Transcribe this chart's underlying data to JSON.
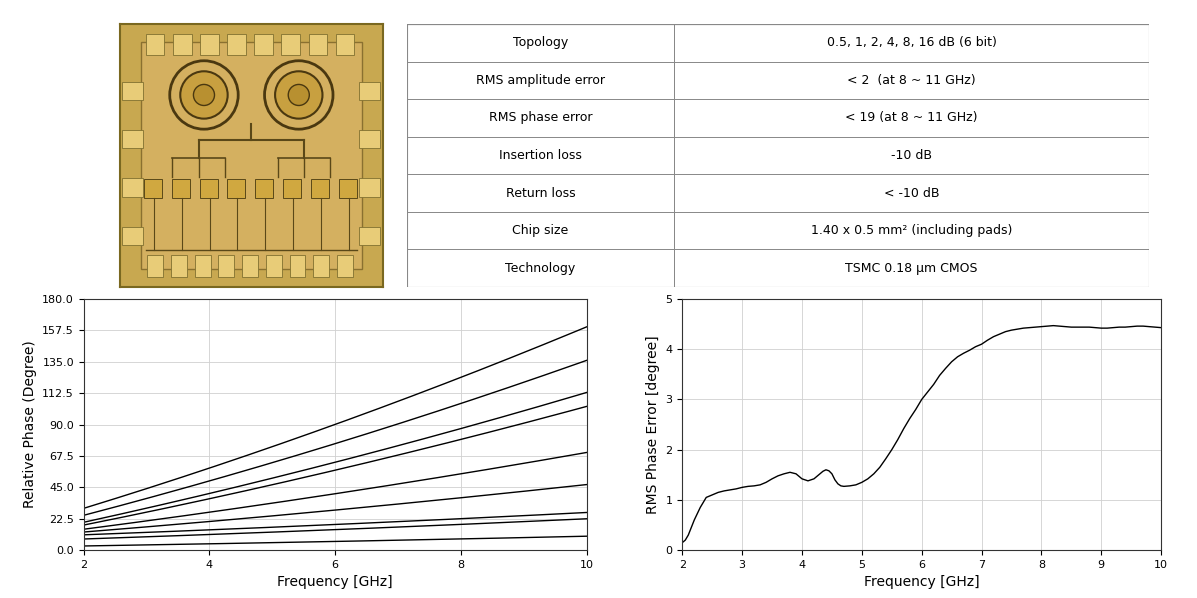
{
  "table_rows": [
    [
      "Topology",
      "0.5, 1, 2, 4, 8, 16 dB (6 bit)"
    ],
    [
      "RMS amplitude error",
      "< 2  (at 8 ~ 11 GHz)"
    ],
    [
      "RMS phase error",
      "< 19 (at 8 ~ 11 GHz)"
    ],
    [
      "Insertion loss",
      "-10 dB"
    ],
    [
      "Return loss",
      "< -10 dB"
    ],
    [
      "Chip size",
      "1.40 x 0.5 mm² (including pads)"
    ],
    [
      "Technology",
      "TSMC 0.18 μm CMOS"
    ]
  ],
  "left_plot": {
    "xlabel": "Frequency [GHz]",
    "ylabel": "Relative Phase (Degree)",
    "xlim": [
      2,
      10
    ],
    "ylim": [
      0.0,
      180.0
    ],
    "yticks": [
      0.0,
      22.5,
      45.0,
      67.5,
      90.0,
      112.5,
      135.0,
      157.5,
      180.0
    ],
    "xticks": [
      2,
      4,
      6,
      8,
      10
    ],
    "phase_lines": [
      [
        30.0,
        160.0
      ],
      [
        25.0,
        136.0
      ],
      [
        20.0,
        113.0
      ],
      [
        18.0,
        103.0
      ],
      [
        15.0,
        70.0
      ],
      [
        13.0,
        47.0
      ],
      [
        11.0,
        27.0
      ],
      [
        8.0,
        22.5
      ],
      [
        3.0,
        10.0
      ]
    ]
  },
  "right_plot": {
    "xlabel": "Frequency [GHz]",
    "ylabel": "RMS Phase Error [degree]",
    "xlim": [
      2,
      10
    ],
    "ylim": [
      0,
      5
    ],
    "yticks": [
      0,
      1,
      2,
      3,
      4,
      5
    ],
    "xticks": [
      2,
      3,
      4,
      5,
      6,
      7,
      8,
      9,
      10
    ],
    "rms_curve_x": [
      2.0,
      2.05,
      2.1,
      2.15,
      2.2,
      2.3,
      2.4,
      2.5,
      2.6,
      2.7,
      2.8,
      2.9,
      3.0,
      3.1,
      3.2,
      3.3,
      3.4,
      3.5,
      3.6,
      3.7,
      3.8,
      3.9,
      4.0,
      4.1,
      4.2,
      4.3,
      4.35,
      4.4,
      4.45,
      4.5,
      4.55,
      4.6,
      4.65,
      4.7,
      4.8,
      4.9,
      5.0,
      5.1,
      5.2,
      5.3,
      5.4,
      5.5,
      5.6,
      5.7,
      5.8,
      5.9,
      6.0,
      6.1,
      6.2,
      6.3,
      6.4,
      6.5,
      6.6,
      6.7,
      6.8,
      6.9,
      7.0,
      7.1,
      7.2,
      7.3,
      7.4,
      7.5,
      7.6,
      7.7,
      7.8,
      7.9,
      8.0,
      8.1,
      8.2,
      8.3,
      8.4,
      8.5,
      8.6,
      8.7,
      8.8,
      8.9,
      9.0,
      9.1,
      9.2,
      9.3,
      9.4,
      9.5,
      9.6,
      9.7,
      9.8,
      9.9,
      10.0
    ],
    "rms_curve_y": [
      0.15,
      0.2,
      0.3,
      0.45,
      0.6,
      0.85,
      1.05,
      1.1,
      1.15,
      1.18,
      1.2,
      1.22,
      1.25,
      1.27,
      1.28,
      1.3,
      1.35,
      1.42,
      1.48,
      1.52,
      1.55,
      1.52,
      1.42,
      1.38,
      1.42,
      1.52,
      1.57,
      1.6,
      1.58,
      1.52,
      1.4,
      1.32,
      1.28,
      1.27,
      1.28,
      1.3,
      1.35,
      1.42,
      1.52,
      1.65,
      1.82,
      2.0,
      2.2,
      2.42,
      2.62,
      2.8,
      3.0,
      3.15,
      3.3,
      3.48,
      3.62,
      3.75,
      3.85,
      3.92,
      3.98,
      4.05,
      4.1,
      4.18,
      4.25,
      4.3,
      4.35,
      4.38,
      4.4,
      4.42,
      4.43,
      4.44,
      4.45,
      4.46,
      4.47,
      4.46,
      4.45,
      4.44,
      4.44,
      4.44,
      4.44,
      4.43,
      4.42,
      4.42,
      4.43,
      4.44,
      4.44,
      4.45,
      4.46,
      4.46,
      4.45,
      4.44,
      4.43
    ]
  },
  "bg_color": "#ffffff",
  "line_color": "#000000",
  "grid_color": "#d0d0d0",
  "table_line_color": "#888888"
}
